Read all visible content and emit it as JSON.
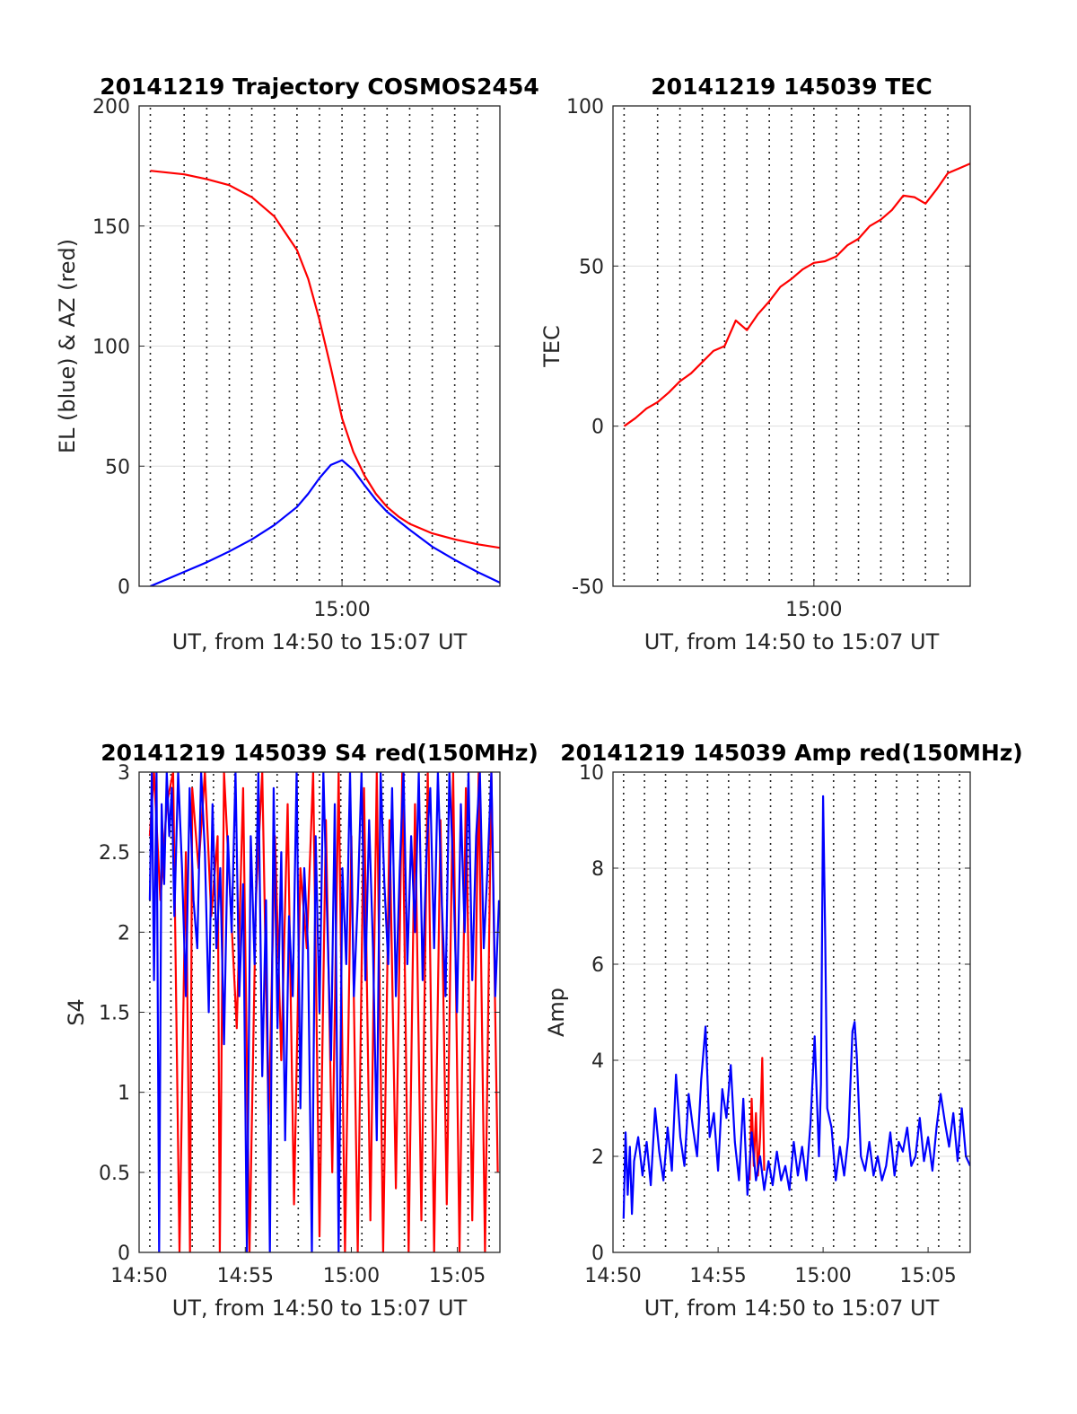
{
  "chart_data": [
    {
      "type": "line",
      "title": "20141219 Trajectory COSMOS2454",
      "xlabel": "UT, from 14:50 to 15:07 UT",
      "ylabel": "EL (blue) & AZ (red)",
      "xlim": [
        14.85,
        15.1167
      ],
      "ylim": [
        0,
        200
      ],
      "yticks": [
        0,
        50,
        100,
        150,
        200
      ],
      "xticks": [
        {
          "value": 15.0,
          "label": "15:00"
        }
      ],
      "xgrid": [
        14.8583,
        14.8833,
        14.9,
        14.9167,
        14.9333,
        14.95,
        14.9667,
        14.9833,
        15.0,
        15.0167,
        15.0333,
        15.05,
        15.0667,
        15.0833,
        15.1
      ],
      "grid": true,
      "series": [
        {
          "color": "#ff0000",
          "x": [
            14.8583,
            14.8833,
            14.9,
            14.9167,
            14.9333,
            14.95,
            14.9667,
            14.975,
            14.9833,
            14.9917,
            15.0,
            15.0083,
            15.0167,
            15.025,
            15.0333,
            15.0417,
            15.05,
            15.0667,
            15.0833,
            15.1,
            15.1167
          ],
          "y": [
            173,
            171.5,
            169.5,
            167,
            162,
            154,
            140,
            128,
            111,
            91,
            70,
            56,
            46,
            38.5,
            33,
            29,
            26,
            22,
            19.5,
            17.5,
            16
          ]
        },
        {
          "color": "#0000ff",
          "x": [
            14.8583,
            14.8833,
            14.9,
            14.9167,
            14.9333,
            14.95,
            14.9667,
            14.975,
            14.9833,
            14.9917,
            15.0,
            15.0083,
            15.0167,
            15.025,
            15.0333,
            15.05,
            15.0667,
            15.0833,
            15.1,
            15.1167
          ],
          "y": [
            0,
            6,
            10,
            14.5,
            19.5,
            25.5,
            33,
            38.5,
            45,
            50.5,
            52.5,
            48.5,
            42,
            36,
            31,
            23.5,
            16.5,
            11,
            6,
            1.5
          ]
        }
      ]
    },
    {
      "type": "line",
      "title": "20141219 145039 TEC",
      "xlabel": "UT, from 14:50 to 15:07 UT",
      "ylabel": "TEC",
      "xlim": [
        14.85,
        15.1167
      ],
      "ylim": [
        -50,
        100
      ],
      "yticks": [
        -50,
        0,
        50,
        100
      ],
      "xticks": [
        {
          "value": 15.0,
          "label": "15:00"
        }
      ],
      "xgrid": [
        14.8583,
        14.8833,
        14.9,
        14.9167,
        14.9333,
        14.95,
        14.9667,
        14.9833,
        15.0,
        15.0167,
        15.0333,
        15.05,
        15.0667,
        15.0833,
        15.1
      ],
      "grid": true,
      "series": [
        {
          "color": "#ff0000",
          "x": [
            14.8583,
            14.8667,
            14.875,
            14.8833,
            14.8917,
            14.9,
            14.9083,
            14.9167,
            14.925,
            14.9333,
            14.9417,
            14.95,
            14.9583,
            14.9667,
            14.975,
            14.9833,
            14.9917,
            15.0,
            15.0083,
            15.0167,
            15.025,
            15.0333,
            15.0417,
            15.05,
            15.0583,
            15.0667,
            15.075,
            15.0833,
            15.0917,
            15.1,
            15.1083,
            15.1167
          ],
          "y": [
            0,
            2.5,
            5.5,
            7.5,
            10.5,
            14,
            16.5,
            20,
            23.5,
            25,
            33,
            30,
            35,
            39,
            43.5,
            46,
            49,
            51,
            51.5,
            53,
            56.5,
            58.5,
            62.5,
            64.5,
            67.5,
            72,
            71.5,
            69.5,
            74,
            79,
            80.5,
            82
          ]
        }
      ]
    },
    {
      "type": "line",
      "title": "20141219 145039 S4 red(150MHz)",
      "xlabel": "UT, from 14:50 to 15:07 UT",
      "ylabel": "S4",
      "xlim": [
        14.8333,
        15.1167
      ],
      "ylim": [
        0,
        3
      ],
      "yticks": [
        0,
        0.5,
        1,
        1.5,
        2,
        2.5,
        3
      ],
      "ytick_labels": [
        "0",
        "0.5",
        "1",
        "1.5",
        "2",
        "2.5",
        "3"
      ],
      "xticks": [
        {
          "value": 14.8333,
          "label": "14:50"
        },
        {
          "value": 14.9167,
          "label": "14:55"
        },
        {
          "value": 15.0,
          "label": "15:00"
        },
        {
          "value": 15.0833,
          "label": "15:05"
        }
      ],
      "xgrid": [
        14.8417,
        14.8583,
        14.875,
        14.8917,
        14.9083,
        14.925,
        14.9417,
        14.9583,
        14.975,
        14.9917,
        15.0083,
        15.025,
        15.0417,
        15.0583,
        15.075,
        15.0917,
        15.1083
      ],
      "grid": true,
      "series": [
        {
          "color": "#ff0000",
          "x": [
            14.8417,
            14.845,
            14.85,
            14.855,
            14.86,
            14.865,
            14.87,
            14.8733,
            14.875,
            14.88,
            14.885,
            14.89,
            14.895,
            14.8967,
            14.9,
            14.905,
            14.91,
            14.915,
            14.92,
            14.925,
            14.93,
            14.935,
            14.94,
            14.945,
            14.95,
            14.955,
            14.96,
            14.965,
            14.97,
            14.975,
            14.98,
            14.985,
            14.99,
            14.995,
            15.0,
            15.005,
            15.01,
            15.015,
            15.02,
            15.025,
            15.03,
            15.035,
            15.04,
            15.045,
            15.05,
            15.055,
            15.06,
            15.065,
            15.07,
            15.075,
            15.08,
            15.085,
            15.09,
            15.095,
            15.1,
            15.105,
            15.11,
            15.115
          ],
          "y": [
            2.6,
            3,
            2.2,
            2.8,
            3,
            0,
            2.5,
            0,
            2.9,
            2.4,
            3,
            2.1,
            2.6,
            0,
            3,
            2.2,
            1.4,
            2.9,
            0,
            2.2,
            3,
            0.8,
            2.6,
            1.2,
            2.8,
            0.3,
            2.4,
            1.9,
            3,
            0.1,
            2.7,
            0.5,
            3,
            0,
            2.6,
            0,
            2.9,
            0.2,
            3,
            0,
            2.7,
            0.4,
            3,
            0,
            2.8,
            0.2,
            3,
            0,
            2.7,
            0.3,
            3,
            0,
            2.9,
            0.2,
            3,
            0,
            3,
            0.5
          ]
        },
        {
          "color": "#0000ff",
          "x": [
            14.8417,
            14.8433,
            14.845,
            14.847,
            14.849,
            14.851,
            14.853,
            14.855,
            14.857,
            14.859,
            14.861,
            14.864,
            14.867,
            14.87,
            14.873,
            14.876,
            14.879,
            14.882,
            14.885,
            14.888,
            14.891,
            14.894,
            14.897,
            14.9,
            14.903,
            14.906,
            14.909,
            14.912,
            14.915,
            14.918,
            14.921,
            14.924,
            14.927,
            14.93,
            14.933,
            14.936,
            14.939,
            14.942,
            14.945,
            14.948,
            14.951,
            14.954,
            14.957,
            14.96,
            14.963,
            14.966,
            14.969,
            14.972,
            14.975,
            14.978,
            14.981,
            14.984,
            14.987,
            14.99,
            14.993,
            14.996,
            14.999,
            15.002,
            15.005,
            15.008,
            15.011,
            15.014,
            15.017,
            15.02,
            15.023,
            15.026,
            15.029,
            15.032,
            15.035,
            15.038,
            15.041,
            15.044,
            15.047,
            15.05,
            15.053,
            15.056,
            15.059,
            15.062,
            15.065,
            15.068,
            15.071,
            15.074,
            15.077,
            15.08,
            15.083,
            15.086,
            15.089,
            15.092,
            15.095,
            15.098,
            15.101,
            15.104,
            15.107,
            15.11,
            15.113,
            15.116
          ],
          "y": [
            2.2,
            3,
            1.7,
            3,
            0,
            2.8,
            2.3,
            3,
            2.6,
            2.9,
            2.1,
            3,
            2.4,
            1.6,
            2.9,
            2.2,
            1.9,
            3,
            2.5,
            1.5,
            2.8,
            1.9,
            2.4,
            1.3,
            2.6,
            2.0,
            3,
            1.6,
            2.3,
            0,
            2.6,
            1.8,
            3,
            1.1,
            2.2,
            0,
            2.9,
            1.4,
            2.5,
            0.7,
            2.1,
            1.6,
            3,
            0.9,
            2.4,
            1.9,
            0,
            2.6,
            1.5,
            3,
            2.1,
            1.2,
            2.8,
            0,
            2.4,
            1.8,
            3,
            1.6,
            2.2,
            3,
            1.7,
            2.7,
            1.9,
            0.7,
            3,
            2.3,
            1.8,
            2.9,
            1.6,
            2.4,
            3,
            1.8,
            2.6,
            2.0,
            3,
            1.7,
            2.5,
            2.9,
            1.9,
            3,
            2.2,
            1.6,
            3,
            2.4,
            1.5,
            2.8,
            2.0,
            3,
            1.7,
            2.6,
            3,
            1.9,
            2.4,
            3,
            1.6,
            2.2
          ]
        }
      ]
    },
    {
      "type": "line",
      "title": "20141219 145039 Amp red(150MHz)",
      "xlabel": "UT, from 14:50 to 15:07 UT",
      "ylabel": "Amp",
      "xlim": [
        14.8333,
        15.1167
      ],
      "ylim": [
        0,
        10
      ],
      "yticks": [
        0,
        2,
        4,
        6,
        8,
        10
      ],
      "xticks": [
        {
          "value": 14.8333,
          "label": "14:50"
        },
        {
          "value": 14.9167,
          "label": "14:55"
        },
        {
          "value": 15.0,
          "label": "15:00"
        },
        {
          "value": 15.0833,
          "label": "15:05"
        }
      ],
      "xgrid": [
        14.8417,
        14.8583,
        14.875,
        14.8917,
        14.9083,
        14.925,
        14.9417,
        14.9583,
        14.975,
        14.9917,
        15.0083,
        15.025,
        15.0417,
        15.0583,
        15.075,
        15.0917,
        15.1083
      ],
      "grid": true,
      "series": [
        {
          "color": "#ff0000",
          "x": [
            14.9417,
            14.9433,
            14.945,
            14.9467,
            14.9483,
            14.95,
            14.9517,
            14.9533
          ],
          "y": [
            1.5,
            3.2,
            1.8,
            2.9,
            1.6,
            2.4,
            4.05,
            1.7
          ]
        },
        {
          "color": "#0000ff",
          "x": [
            14.8417,
            14.8433,
            14.845,
            14.8467,
            14.8483,
            14.85,
            14.8533,
            14.8567,
            14.86,
            14.8633,
            14.8667,
            14.87,
            14.8733,
            14.8767,
            14.88,
            14.8833,
            14.8867,
            14.89,
            14.8933,
            14.8967,
            14.9,
            14.9033,
            14.9067,
            14.91,
            14.9133,
            14.9167,
            14.92,
            14.9233,
            14.9267,
            14.93,
            14.9333,
            14.9367,
            14.94,
            14.9433,
            14.9467,
            14.95,
            14.9533,
            14.9567,
            14.96,
            14.9633,
            14.9667,
            14.97,
            14.9733,
            14.9767,
            14.98,
            14.9833,
            14.9867,
            14.99,
            14.9933,
            14.9967,
            14.9983,
            15.0,
            15.0017,
            15.0033,
            15.0067,
            15.01,
            15.0133,
            15.0167,
            15.02,
            15.0233,
            15.025,
            15.0267,
            15.03,
            15.0333,
            15.0367,
            15.04,
            15.0433,
            15.0467,
            15.05,
            15.0533,
            15.0567,
            15.06,
            15.0633,
            15.0667,
            15.07,
            15.0733,
            15.0767,
            15.08,
            15.0833,
            15.0867,
            15.09,
            15.0933,
            15.0967,
            15.1,
            15.1033,
            15.1067,
            15.11,
            15.1133,
            15.1167
          ],
          "y": [
            0.7,
            2.5,
            1.2,
            2.2,
            0.8,
            1.9,
            2.4,
            1.6,
            2.3,
            1.4,
            3.0,
            2.1,
            1.5,
            2.6,
            1.7,
            3.7,
            2.4,
            1.8,
            3.3,
            2.6,
            2.0,
            3.6,
            4.7,
            2.4,
            2.9,
            1.7,
            3.4,
            2.8,
            3.9,
            2.3,
            1.5,
            3.2,
            1.2,
            2.5,
            1.5,
            2.0,
            1.3,
            1.9,
            1.4,
            2.1,
            1.5,
            1.8,
            1.3,
            2.3,
            1.6,
            2.2,
            1.5,
            2.7,
            4.5,
            2.0,
            3.5,
            9.5,
            6.5,
            3.0,
            2.6,
            1.5,
            2.2,
            1.6,
            2.4,
            4.6,
            4.8,
            4.1,
            2.0,
            1.7,
            2.3,
            1.6,
            2.0,
            1.5,
            1.8,
            2.5,
            1.6,
            2.3,
            2.1,
            2.6,
            1.8,
            2.0,
            2.8,
            1.9,
            2.4,
            1.7,
            2.6,
            3.3,
            2.7,
            2.2,
            2.9,
            1.9,
            3.0,
            2.0,
            1.8
          ]
        }
      ]
    }
  ]
}
